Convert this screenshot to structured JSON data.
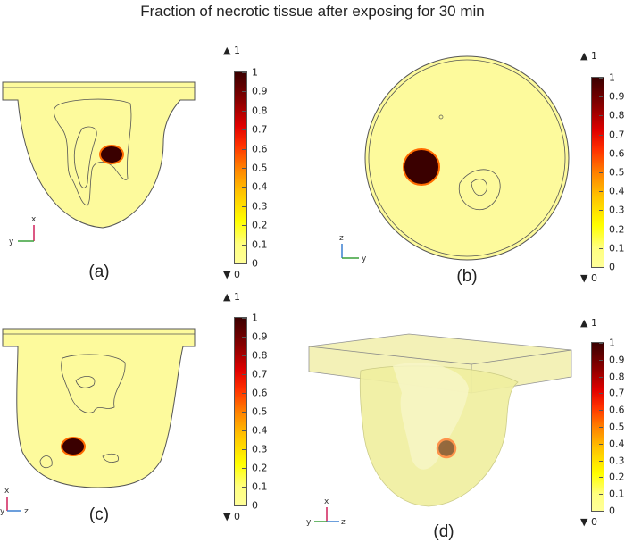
{
  "title": "Fraction of necrotic tissue after exposing for 30 min",
  "colorbar": {
    "max_marker": "▲ 1",
    "min_marker": "▼ 0",
    "ticks": [
      "1",
      "0.9",
      "0.8",
      "0.7",
      "0.6",
      "0.5",
      "0.4",
      "0.3",
      "0.2",
      "0.1",
      "0"
    ]
  },
  "panels": [
    {
      "label": "(a)",
      "axis_up": "x",
      "axis_side": "y",
      "axis_side2": ""
    },
    {
      "label": "(b)",
      "axis_up": "z",
      "axis_side": "",
      "axis_side2": "y"
    },
    {
      "label": "(c)",
      "axis_up": "x",
      "axis_side": "y",
      "axis_side2": "z"
    },
    {
      "label": "(d)",
      "axis_up": "x",
      "axis_side": "y",
      "axis_side2": "z"
    }
  ],
  "colors": {
    "tissue": "#fdfa9c",
    "necrotic": "#3a0000"
  }
}
